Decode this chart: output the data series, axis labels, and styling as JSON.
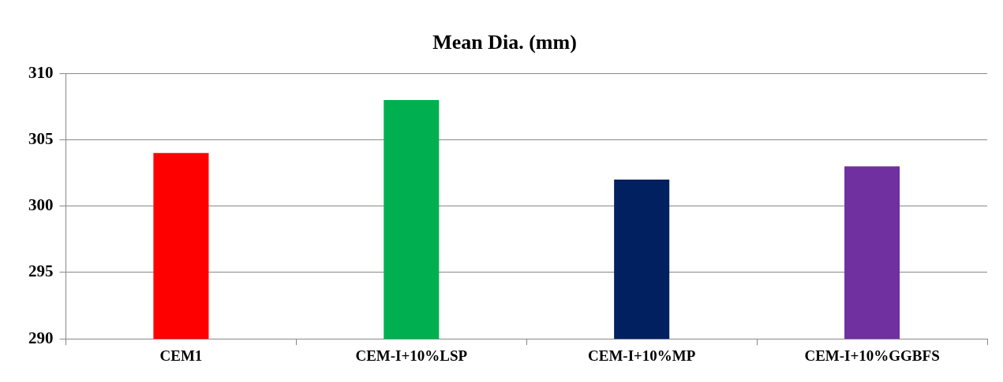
{
  "chart_data": {
    "type": "bar",
    "title": "Mean Dia. (mm)",
    "categories": [
      "CEM1",
      "CEM-I+10%LSP",
      "CEM-I+10%MP",
      "CEM-I+10%GGBFS"
    ],
    "values": [
      304,
      308,
      302,
      303
    ],
    "colors": [
      "#ff0000",
      "#00b050",
      "#002060",
      "#7030a0"
    ],
    "ylim": [
      290,
      310
    ],
    "yticks": [
      290,
      295,
      300,
      305,
      310
    ],
    "grid": "y",
    "legend": false
  }
}
